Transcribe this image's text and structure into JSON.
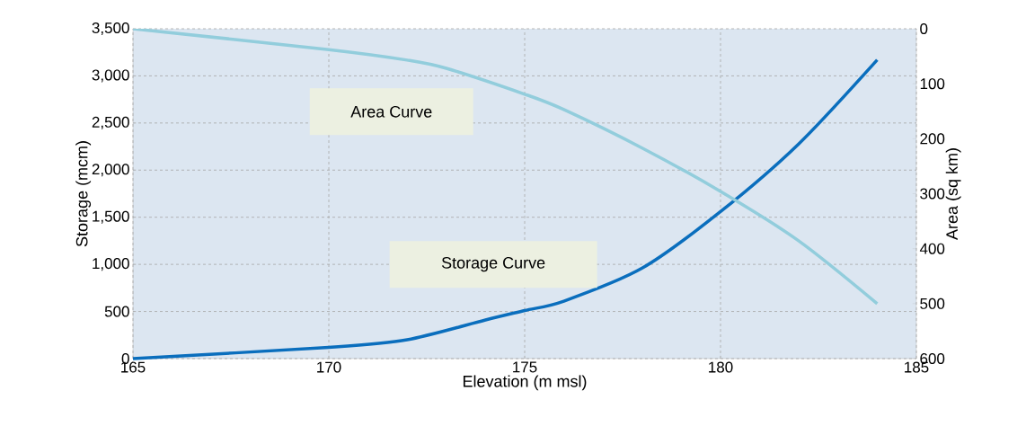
{
  "chart_data": {
    "type": "line",
    "xlabel": "Elevation (m msl)",
    "ylabel": "Storage (mcm)",
    "y2label": "Area (sq km)",
    "xlim": [
      165,
      185
    ],
    "xticks": [
      165,
      170,
      175,
      180,
      185
    ],
    "ylim": [
      0,
      3500
    ],
    "yticks": [
      0,
      500,
      {
        "value": 1000,
        "label": "1,000"
      },
      {
        "value": 1500,
        "label": "1,500"
      },
      {
        "value": 2000,
        "label": "2,000"
      },
      {
        "value": 2500,
        "label": "2,500"
      },
      {
        "value": 3000,
        "label": "3,000"
      },
      {
        "value": 3500,
        "label": "3,500"
      }
    ],
    "y2lim": [
      600,
      0
    ],
    "y2ticks": [
      0,
      100,
      200,
      300,
      400,
      500,
      600
    ],
    "grid": true,
    "marker": "none",
    "line_style": "solid",
    "series": [
      {
        "name": "Storage Curve",
        "color": "#0a6ebd",
        "axis": "y",
        "x": [
          165,
          170,
          172,
          174,
          175,
          176,
          178,
          180,
          182,
          184
        ],
        "values": [
          0,
          120,
          200,
          410,
          510,
          610,
          960,
          1560,
          2280,
          3170
        ]
      },
      {
        "name": "Area Curve",
        "color": "#92cddc",
        "axis": "y2",
        "x": [
          165,
          170,
          172,
          173,
          175,
          176,
          178,
          180,
          182,
          184
        ],
        "values": [
          0,
          38,
          57,
          72,
          119,
          147,
          217,
          296,
          386,
          500
        ]
      }
    ]
  }
}
